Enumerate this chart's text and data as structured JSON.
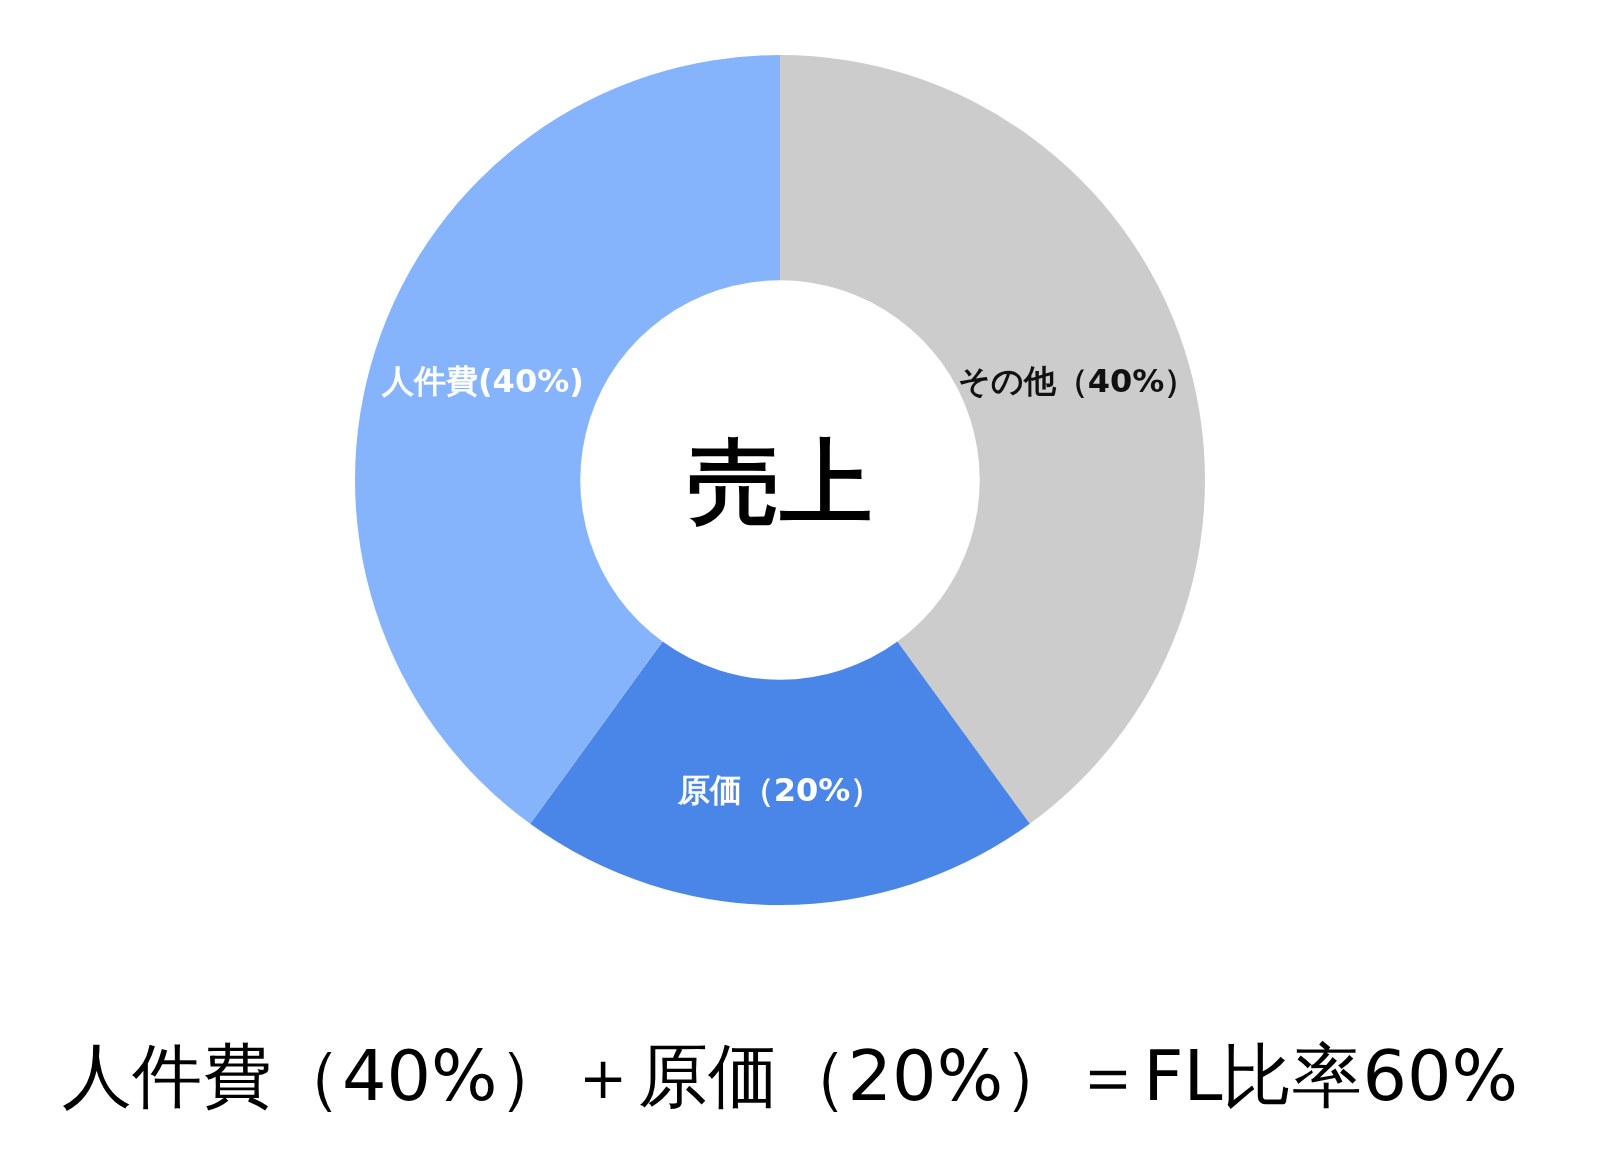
{
  "chart_data": {
    "type": "donut",
    "title": "売上",
    "categories": [
      "その他（40%）",
      "原価（20%）",
      "人件費(40%)"
    ],
    "values": [
      40,
      20,
      40
    ],
    "colors": [
      "#cccccc",
      "#4a86e8",
      "#85b4fc"
    ],
    "annotations": [
      "人件費（40%）＋原価（20%）＝FL比率60%"
    ]
  }
}
